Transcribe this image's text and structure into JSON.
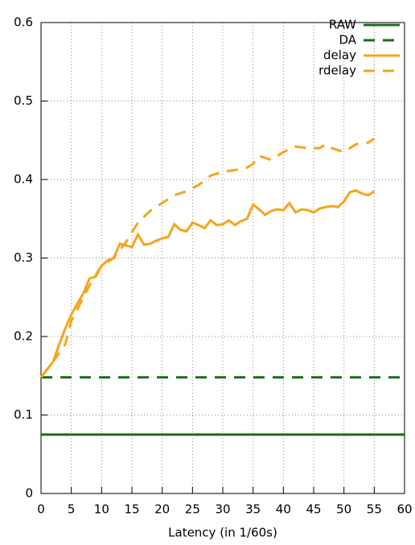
{
  "chart_data": {
    "type": "line",
    "xlabel": "Latency (in 1/60s)",
    "xlim": [
      0,
      60
    ],
    "xticks": [
      0,
      5,
      10,
      15,
      20,
      25,
      30,
      35,
      40,
      45,
      50,
      55,
      60
    ],
    "ylim": [
      0,
      0.6
    ],
    "yticks": [
      0,
      0.1,
      0.2,
      0.3,
      0.4,
      0.5,
      0.6
    ],
    "grid": true,
    "legend": "top-right",
    "series": [
      {
        "name": "RAW",
        "color": "#1b6b1b",
        "dash": false,
        "x": [
          0,
          60
        ],
        "values": [
          0.075,
          0.075
        ]
      },
      {
        "name": "DA",
        "color": "#1b6b1b",
        "dash": true,
        "x": [
          0,
          60
        ],
        "values": [
          0.148,
          0.148
        ]
      },
      {
        "name": "delay",
        "color": "#f5a51c",
        "dash": false,
        "x": [
          0,
          1,
          2,
          3,
          4,
          5,
          6,
          7,
          8,
          9,
          10,
          11,
          12,
          13,
          14,
          15,
          16,
          17,
          18,
          19,
          20,
          21,
          22,
          23,
          24,
          25,
          26,
          27,
          28,
          29,
          30,
          31,
          32,
          33,
          34,
          35,
          36,
          37,
          38,
          39,
          40,
          41,
          42,
          43,
          44,
          45,
          46,
          47,
          48,
          49,
          50,
          51,
          52,
          53,
          54,
          55
        ],
        "values": [
          0.148,
          0.158,
          0.168,
          0.19,
          0.21,
          0.228,
          0.242,
          0.255,
          0.274,
          0.276,
          0.29,
          0.297,
          0.3,
          0.318,
          0.316,
          0.314,
          0.33,
          0.317,
          0.318,
          0.322,
          0.325,
          0.327,
          0.343,
          0.336,
          0.334,
          0.345,
          0.342,
          0.338,
          0.348,
          0.342,
          0.343,
          0.348,
          0.342,
          0.347,
          0.35,
          0.368,
          0.362,
          0.355,
          0.36,
          0.362,
          0.361,
          0.37,
          0.358,
          0.362,
          0.361,
          0.358,
          0.363,
          0.365,
          0.366,
          0.365,
          0.372,
          0.384,
          0.386,
          0.382,
          0.38,
          0.385
        ]
      },
      {
        "name": "rdelay",
        "color": "#f5a51c",
        "dash": true,
        "x": [
          0,
          2,
          4,
          5,
          7,
          8,
          9,
          10,
          12,
          14,
          16,
          18,
          20,
          22,
          24,
          26,
          28,
          30,
          32,
          34,
          35,
          36,
          38,
          40,
          42,
          44,
          46,
          47,
          48,
          50,
          52,
          54,
          55
        ],
        "values": [
          0.148,
          0.168,
          0.19,
          0.22,
          0.25,
          0.265,
          0.278,
          0.29,
          0.3,
          0.32,
          0.345,
          0.36,
          0.37,
          0.38,
          0.385,
          0.393,
          0.405,
          0.41,
          0.412,
          0.415,
          0.42,
          0.43,
          0.425,
          0.435,
          0.442,
          0.44,
          0.44,
          0.445,
          0.44,
          0.435,
          0.445,
          0.447,
          0.452
        ]
      }
    ]
  }
}
